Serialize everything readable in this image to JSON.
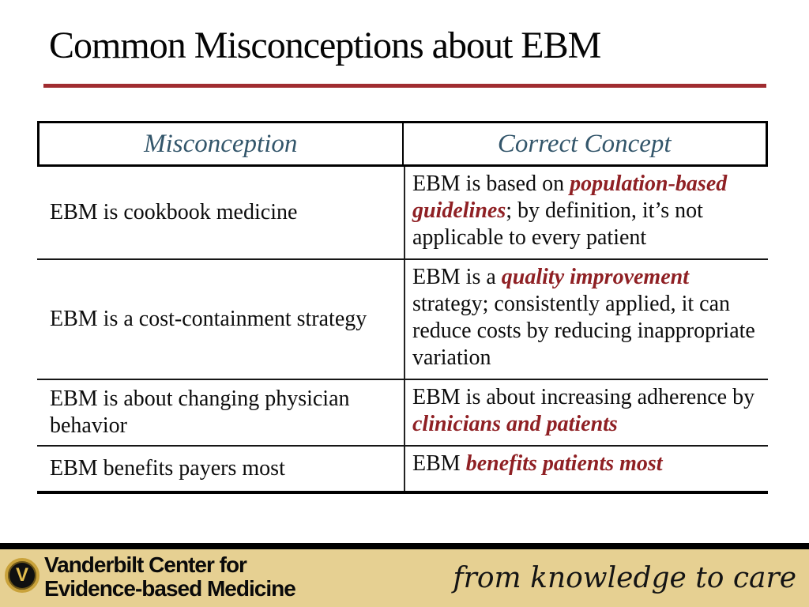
{
  "slide": {
    "title": "Common Misconceptions about EBM"
  },
  "table": {
    "headers": [
      "Misconception",
      "Correct Concept"
    ],
    "rows": [
      {
        "misconception": "EBM is cookbook medicine",
        "concept": [
          {
            "text": "EBM is based on ",
            "em": false
          },
          {
            "text": "population-based guidelines",
            "em": true
          },
          {
            "text": "; by definition, it’s not applicable to every patient",
            "em": false
          }
        ]
      },
      {
        "misconception": "EBM is a cost-containment strategy",
        "concept": [
          {
            "text": "EBM is a ",
            "em": false
          },
          {
            "text": "quality improvement",
            "em": true
          },
          {
            "text": " strategy; consistently applied, it can reduce costs by reducing inappropriate variation",
            "em": false
          }
        ]
      },
      {
        "misconception": "EBM is about changing physician behavior",
        "concept": [
          {
            "text": "EBM is about increasing adherence by ",
            "em": false
          },
          {
            "text": "clinicians and patients",
            "em": true
          }
        ]
      },
      {
        "misconception": "EBM benefits payers most",
        "concept": [
          {
            "text": "EBM ",
            "em": false
          },
          {
            "text": "benefits patients most",
            "em": true
          }
        ]
      }
    ]
  },
  "footer": {
    "logo_icon": "vanderbilt-v-emblem",
    "logo_glyph": "V",
    "org_line1": "Vanderbilt Center for",
    "org_line2": "Evidence-based Medicine",
    "tagline": "from knowledge to care"
  },
  "colors": {
    "accent_rule": "#a02c30",
    "highlight_text": "#8f2024",
    "header_text": "#33566b",
    "footer_band": "#e6d092"
  }
}
